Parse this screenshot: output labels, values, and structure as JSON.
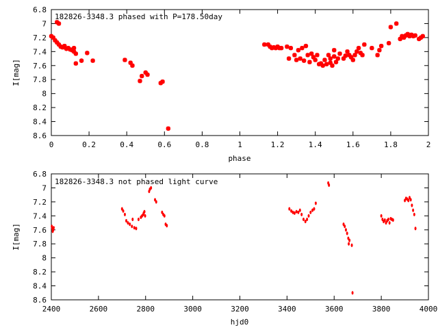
{
  "chart_data": [
    {
      "type": "scatter",
      "title": "182826-3348.3 phased with P=178.50day",
      "xlabel": "phase",
      "ylabel": "I[mag]",
      "xlim": [
        0,
        2
      ],
      "ylim": [
        6.8,
        8.6
      ],
      "y_inverted": true,
      "x_ticks": [
        "0",
        "0.2",
        "0.4",
        "0.6",
        "0.8",
        "1",
        "1.2",
        "1.4",
        "1.6",
        "1.8",
        "2"
      ],
      "y_ticks": [
        "6.8",
        "7",
        "7.2",
        "7.4",
        "7.6",
        "7.8",
        "8",
        "8.2",
        "8.4",
        "8.6"
      ],
      "grid": false,
      "marker_color": "#ff0000",
      "series": [
        {
          "points": [
            [
              0.0,
              7.18
            ],
            [
              0.01,
              7.2
            ],
            [
              0.02,
              7.24
            ],
            [
              0.03,
              7.27
            ],
            [
              0.03,
              6.98
            ],
            [
              0.04,
              7.0
            ],
            [
              0.04,
              7.3
            ],
            [
              0.05,
              7.33
            ],
            [
              0.06,
              7.34
            ],
            [
              0.07,
              7.32
            ],
            [
              0.08,
              7.36
            ],
            [
              0.09,
              7.35
            ],
            [
              0.1,
              7.37
            ],
            [
              0.11,
              7.38
            ],
            [
              0.12,
              7.4
            ],
            [
              0.12,
              7.35
            ],
            [
              0.13,
              7.43
            ],
            [
              0.13,
              7.57
            ],
            [
              0.16,
              7.53
            ],
            [
              0.19,
              7.42
            ],
            [
              0.22,
              7.53
            ],
            [
              0.39,
              7.52
            ],
            [
              0.42,
              7.56
            ],
            [
              0.43,
              7.6
            ],
            [
              0.47,
              7.82
            ],
            [
              0.48,
              7.75
            ],
            [
              0.5,
              7.7
            ],
            [
              0.51,
              7.73
            ],
            [
              0.58,
              7.85
            ],
            [
              0.59,
              7.83
            ],
            [
              0.62,
              8.5
            ],
            [
              1.13,
              7.3
            ],
            [
              1.15,
              7.3
            ],
            [
              1.16,
              7.33
            ],
            [
              1.17,
              7.35
            ],
            [
              1.18,
              7.34
            ],
            [
              1.19,
              7.35
            ],
            [
              1.2,
              7.33
            ],
            [
              1.21,
              7.35
            ],
            [
              1.22,
              7.35
            ],
            [
              1.25,
              7.33
            ],
            [
              1.26,
              7.5
            ],
            [
              1.27,
              7.35
            ],
            [
              1.29,
              7.45
            ],
            [
              1.3,
              7.52
            ],
            [
              1.31,
              7.38
            ],
            [
              1.32,
              7.5
            ],
            [
              1.33,
              7.35
            ],
            [
              1.34,
              7.53
            ],
            [
              1.35,
              7.32
            ],
            [
              1.36,
              7.45
            ],
            [
              1.37,
              7.55
            ],
            [
              1.38,
              7.43
            ],
            [
              1.39,
              7.48
            ],
            [
              1.4,
              7.52
            ],
            [
              1.41,
              7.45
            ],
            [
              1.42,
              7.58
            ],
            [
              1.43,
              7.57
            ],
            [
              1.44,
              7.6
            ],
            [
              1.45,
              7.52
            ],
            [
              1.46,
              7.58
            ],
            [
              1.47,
              7.45
            ],
            [
              1.48,
              7.5
            ],
            [
              1.48,
              7.56
            ],
            [
              1.49,
              7.6
            ],
            [
              1.5,
              7.47
            ],
            [
              1.5,
              7.38
            ],
            [
              1.51,
              7.55
            ],
            [
              1.52,
              7.5
            ],
            [
              1.53,
              7.43
            ],
            [
              1.55,
              7.5
            ],
            [
              1.56,
              7.46
            ],
            [
              1.57,
              7.4
            ],
            [
              1.58,
              7.45
            ],
            [
              1.59,
              7.48
            ],
            [
              1.6,
              7.52
            ],
            [
              1.61,
              7.45
            ],
            [
              1.62,
              7.4
            ],
            [
              1.63,
              7.35
            ],
            [
              1.64,
              7.42
            ],
            [
              1.65,
              7.45
            ],
            [
              1.66,
              7.3
            ],
            [
              1.7,
              7.35
            ],
            [
              1.73,
              7.45
            ],
            [
              1.74,
              7.38
            ],
            [
              1.75,
              7.32
            ],
            [
              1.79,
              7.28
            ],
            [
              1.8,
              7.05
            ],
            [
              1.83,
              7.0
            ],
            [
              1.85,
              7.22
            ],
            [
              1.86,
              7.18
            ],
            [
              1.87,
              7.2
            ],
            [
              1.88,
              7.17
            ],
            [
              1.89,
              7.15
            ],
            [
              1.9,
              7.18
            ],
            [
              1.91,
              7.16
            ],
            [
              1.92,
              7.18
            ],
            [
              1.93,
              7.17
            ],
            [
              1.95,
              7.22
            ],
            [
              1.96,
              7.2
            ],
            [
              1.97,
              7.18
            ]
          ]
        }
      ]
    },
    {
      "type": "scatter",
      "title": "182826-3348.3 not phased light curve",
      "xlabel": "hjd0",
      "ylabel": "I[mag]",
      "xlim": [
        2400,
        4000
      ],
      "ylim": [
        6.8,
        8.6
      ],
      "y_inverted": true,
      "x_ticks": [
        "2400",
        "2600",
        "2800",
        "3000",
        "3200",
        "3400",
        "3600",
        "3800",
        "4000"
      ],
      "y_ticks": [
        "6.8",
        "7",
        "7.2",
        "7.4",
        "7.6",
        "7.8",
        "8",
        "8.2",
        "8.4",
        "8.6"
      ],
      "grid": false,
      "marker_color": "#ff0000",
      "series": [
        {
          "points": [
            [
              2402,
              7.55
            ],
            [
              2404,
              7.58
            ],
            [
              2406,
              7.62
            ],
            [
              2408,
              7.6
            ],
            [
              2410,
              7.57
            ],
            [
              2700,
              7.3
            ],
            [
              2705,
              7.33
            ],
            [
              2712,
              7.38
            ],
            [
              2718,
              7.47
            ],
            [
              2725,
              7.5
            ],
            [
              2733,
              7.52
            ],
            [
              2742,
              7.55
            ],
            [
              2745,
              7.45
            ],
            [
              2752,
              7.57
            ],
            [
              2760,
              7.58
            ],
            [
              2770,
              7.45
            ],
            [
              2780,
              7.42
            ],
            [
              2785,
              7.4
            ],
            [
              2790,
              7.38
            ],
            [
              2792,
              7.36
            ],
            [
              2795,
              7.34
            ],
            [
              2798,
              7.4
            ],
            [
              2815,
              7.05
            ],
            [
              2818,
              7.02
            ],
            [
              2823,
              7.0
            ],
            [
              2840,
              7.17
            ],
            [
              2845,
              7.2
            ],
            [
              2870,
              7.35
            ],
            [
              2875,
              7.38
            ],
            [
              2880,
              7.4
            ],
            [
              2885,
              7.52
            ],
            [
              2890,
              7.54
            ],
            [
              3410,
              7.3
            ],
            [
              3418,
              7.33
            ],
            [
              3425,
              7.35
            ],
            [
              3432,
              7.36
            ],
            [
              3440,
              7.34
            ],
            [
              3448,
              7.35
            ],
            [
              3455,
              7.32
            ],
            [
              3462,
              7.38
            ],
            [
              3470,
              7.45
            ],
            [
              3478,
              7.48
            ],
            [
              3485,
              7.45
            ],
            [
              3492,
              7.4
            ],
            [
              3500,
              7.35
            ],
            [
              3508,
              7.32
            ],
            [
              3515,
              7.3
            ],
            [
              3522,
              7.22
            ],
            [
              3575,
              6.93
            ],
            [
              3578,
              6.96
            ],
            [
              3640,
              7.52
            ],
            [
              3645,
              7.55
            ],
            [
              3650,
              7.6
            ],
            [
              3655,
              7.65
            ],
            [
              3660,
              7.72
            ],
            [
              3662,
              7.8
            ],
            [
              3665,
              7.75
            ],
            [
              3675,
              7.82
            ],
            [
              3678,
              8.5
            ],
            [
              3800,
              7.4
            ],
            [
              3805,
              7.45
            ],
            [
              3810,
              7.48
            ],
            [
              3815,
              7.46
            ],
            [
              3820,
              7.5
            ],
            [
              3825,
              7.47
            ],
            [
              3830,
              7.45
            ],
            [
              3835,
              7.5
            ],
            [
              3840,
              7.44
            ],
            [
              3845,
              7.45
            ],
            [
              3850,
              7.46
            ],
            [
              3900,
              7.18
            ],
            [
              3905,
              7.15
            ],
            [
              3910,
              7.16
            ],
            [
              3915,
              7.18
            ],
            [
              3920,
              7.14
            ],
            [
              3925,
              7.17
            ],
            [
              3930,
              7.25
            ],
            [
              3935,
              7.32
            ],
            [
              3940,
              7.38
            ],
            [
              3945,
              7.58
            ]
          ]
        }
      ]
    }
  ]
}
